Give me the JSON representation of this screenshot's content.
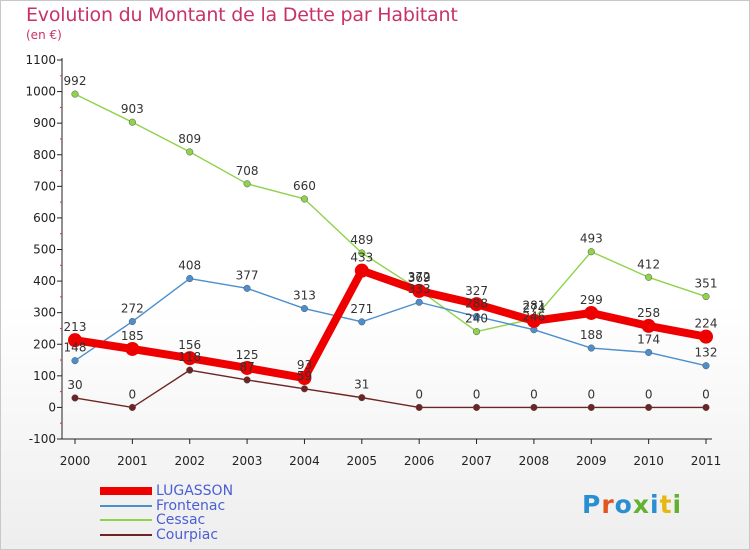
{
  "header": {
    "title": "Evolution du Montant de la Dette par Habitant",
    "unit": "(en €)"
  },
  "logo": {
    "text": "Proxiti",
    "letter_colors": [
      "#2a8fd0",
      "#e0561e",
      "#2a8fd0",
      "#62b22f",
      "#2a8fd0",
      "#e8b812",
      "#62b22f"
    ]
  },
  "colors": {
    "title": "#c8326a",
    "legend_text": "#4a5fd4"
  },
  "chart_data": {
    "type": "line",
    "x": [
      "2000",
      "2001",
      "2002",
      "2003",
      "2004",
      "2005",
      "2006",
      "2007",
      "2008",
      "2009",
      "2010",
      "2011"
    ],
    "ylim": [
      -100,
      1100
    ],
    "yticks": [
      -100,
      0,
      100,
      200,
      300,
      400,
      500,
      600,
      700,
      800,
      900,
      1000,
      1100
    ],
    "grid": false,
    "legend_position": "bottom-left",
    "series": [
      {
        "name": "Cessac",
        "color": "#8ed34a",
        "values": [
          992,
          903,
          809,
          708,
          660,
          489,
          372,
          240,
          281,
          493,
          412,
          351
        ]
      },
      {
        "name": "Frontenac",
        "color": "#4d8fcc",
        "values": [
          148,
          272,
          408,
          377,
          313,
          271,
          333,
          288,
          246,
          188,
          174,
          132
        ]
      },
      {
        "name": "Courpiac",
        "color": "#6e2424",
        "values": [
          30,
          0,
          118,
          87,
          59,
          31,
          0,
          0,
          0,
          0,
          0,
          0
        ]
      },
      {
        "name": "LUGASSON",
        "color": "#ee0000",
        "values": [
          213,
          185,
          156,
          125,
          93,
          433,
          369,
          327,
          274,
          299,
          258,
          224
        ]
      }
    ],
    "legend_order": [
      "LUGASSON",
      "Frontenac",
      "Cessac",
      "Courpiac"
    ]
  }
}
